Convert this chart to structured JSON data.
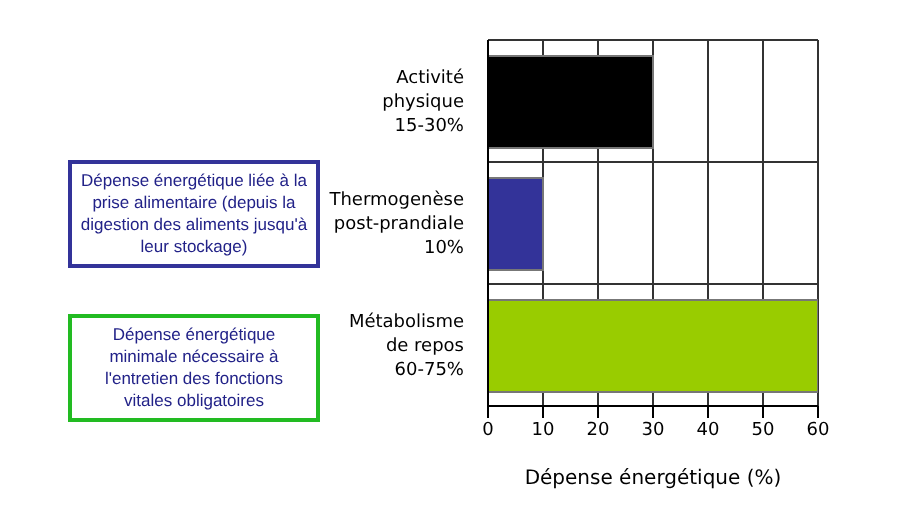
{
  "chart_data": {
    "type": "bar",
    "orientation": "horizontal",
    "categories": [
      "Activité\nphysique\n15-30%",
      "Thermogenèse\npost-prandiale\n10%",
      "Métabolisme\nde repos\n60-75%"
    ],
    "values": [
      30,
      10,
      60
    ],
    "colors": [
      "#000000",
      "#333399",
      "#99cc00"
    ],
    "xlabel": "Dépense énergétique (%)",
    "xlim": [
      0,
      60
    ],
    "xticks": [
      0,
      10,
      20,
      30,
      40,
      50,
      60
    ],
    "grid": true,
    "annotations": [
      "Dépense énergétique liée à la prise alimentaire (depuis la digestion des aliments jusqu'à leur stockage)",
      "Dépense énergétique minimale nécessaire à l'entretien des fonctions vitales obligatoires"
    ]
  }
}
